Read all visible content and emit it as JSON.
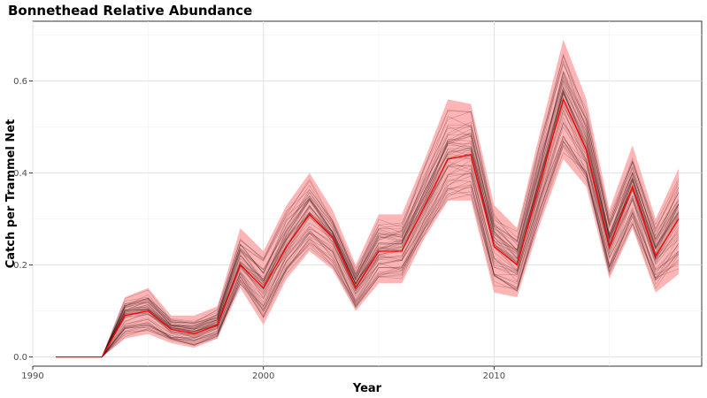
{
  "chart_data": {
    "type": "line",
    "title": "Bonnethead Relative Abundance",
    "xlabel": "Year",
    "ylabel": "Catch per Trammel Net",
    "xlim": [
      1990,
      2019
    ],
    "ylim": [
      -0.02,
      0.73
    ],
    "x_ticks": [
      1990,
      2000,
      2010
    ],
    "y_ticks": [
      0.0,
      0.2,
      0.4,
      0.6
    ],
    "y_tick_labels": [
      "0.0",
      "0.2",
      "0.4",
      "0.6"
    ],
    "grid": true,
    "x": [
      1991,
      1992,
      1993,
      1994,
      1995,
      1996,
      1997,
      1998,
      1999,
      2000,
      2001,
      2002,
      2003,
      2004,
      2005,
      2006,
      2007,
      2008,
      2009,
      2010,
      2011,
      2012,
      2013,
      2014,
      2015,
      2016,
      2017,
      2018
    ],
    "series": [
      {
        "values": [
          0.0,
          0.0,
          0.0,
          0.09,
          0.1,
          0.06,
          0.05,
          0.07,
          0.2,
          0.15,
          0.24,
          0.31,
          0.26,
          0.15,
          0.23,
          0.23,
          0.33,
          0.43,
          0.44,
          0.24,
          0.2,
          0.38,
          0.56,
          0.45,
          0.24,
          0.37,
          0.22,
          0.3
        ],
        "color": "#ff0000"
      }
    ],
    "band": {
      "lower": [
        0.0,
        0.0,
        0.0,
        0.04,
        0.05,
        0.03,
        0.02,
        0.04,
        0.15,
        0.07,
        0.17,
        0.23,
        0.19,
        0.1,
        0.16,
        0.16,
        0.26,
        0.34,
        0.34,
        0.14,
        0.13,
        0.29,
        0.43,
        0.37,
        0.17,
        0.28,
        0.14,
        0.18
      ],
      "upper": [
        0.0,
        0.0,
        0.0,
        0.13,
        0.15,
        0.09,
        0.09,
        0.11,
        0.28,
        0.23,
        0.33,
        0.4,
        0.32,
        0.2,
        0.31,
        0.31,
        0.43,
        0.56,
        0.55,
        0.33,
        0.28,
        0.49,
        0.69,
        0.56,
        0.32,
        0.46,
        0.3,
        0.41
      ],
      "color": "#ff9999"
    },
    "ensemble_color": "#2b0a0a"
  }
}
